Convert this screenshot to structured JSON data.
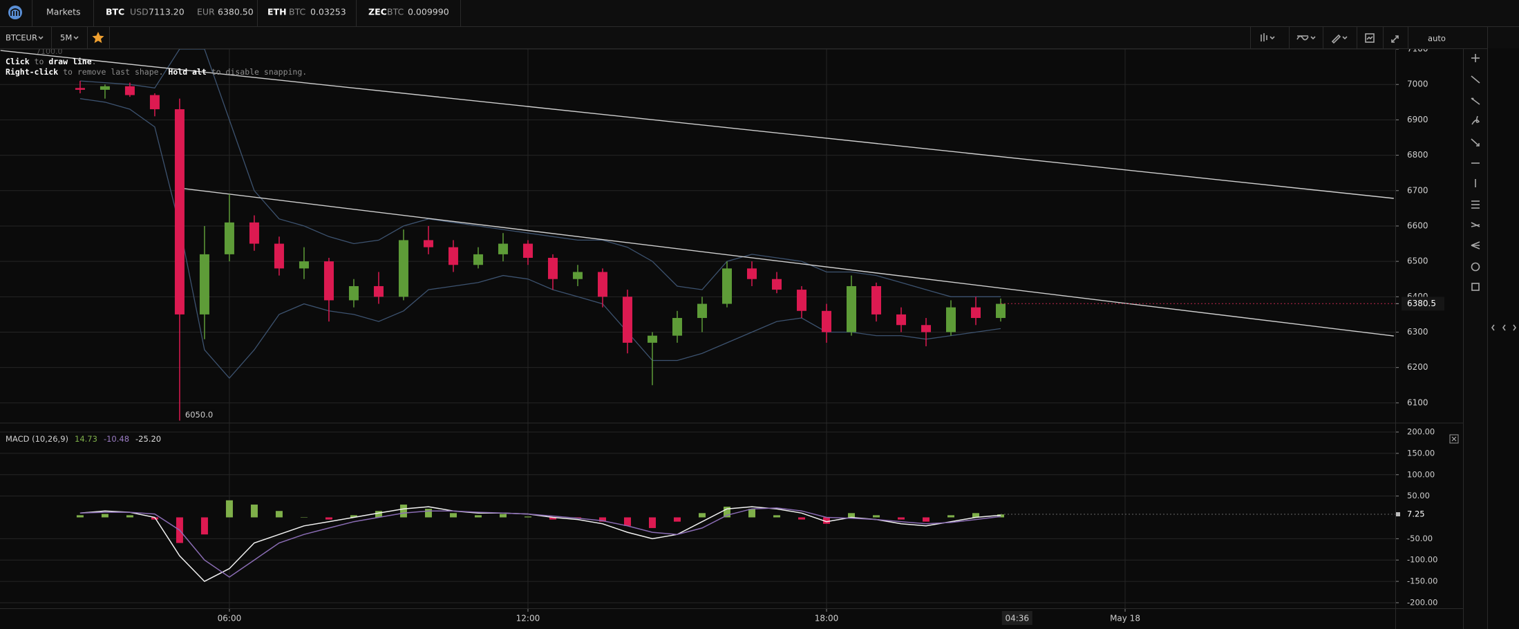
{
  "header": {
    "markets": "Markets",
    "tickers": [
      {
        "symbol": "BTC",
        "quotes": [
          {
            "unit": "USD",
            "price": "7113.20"
          },
          {
            "unit": "EUR",
            "price": "6380.50"
          }
        ]
      },
      {
        "symbol": "ETH",
        "quotes": [
          {
            "unit": "BTC",
            "price": "0.03253"
          }
        ]
      },
      {
        "symbol": "ZEC",
        "quotes": [
          {
            "unit": "BTC",
            "price": "0.009990"
          }
        ]
      }
    ]
  },
  "toolbar": {
    "pair": "BTCEUR",
    "interval": "5M",
    "scale": "auto"
  },
  "hint": {
    "line1": [
      "Click",
      " to ",
      "draw line",
      "."
    ],
    "line2": [
      "Right-click",
      " to remove last shape. ",
      "Hold alt",
      " to disable snapping."
    ]
  },
  "chart_data": [
    {
      "type": "candlestick",
      "x": [
        3,
        3.5,
        4,
        4.5,
        5,
        5.5,
        6,
        6.5,
        7,
        7.5,
        8,
        8.5,
        9,
        9.5,
        10,
        10.5,
        11,
        11.5,
        12,
        12.5,
        13,
        13.5,
        14,
        14.5,
        15,
        15.5,
        16,
        16.5,
        17,
        17.5,
        18,
        18.5,
        19,
        19.5,
        20,
        20.5,
        21,
        21.5
      ],
      "open": [
        6990,
        6985,
        6995,
        6970,
        6930,
        6350,
        6520,
        6610,
        6550,
        6480,
        6500,
        6390,
        6430,
        6400,
        6560,
        6540,
        6490,
        6520,
        6550,
        6510,
        6450,
        6470,
        6400,
        6270,
        6290,
        6340,
        6380,
        6480,
        6450,
        6420,
        6360,
        6300,
        6430,
        6350,
        6320,
        6300,
        6370,
        6340
      ],
      "high": [
        7010,
        7000,
        7005,
        6975,
        6960,
        6600,
        6690,
        6630,
        6570,
        6540,
        6510,
        6450,
        6470,
        6590,
        6600,
        6560,
        6540,
        6580,
        6560,
        6520,
        6490,
        6480,
        6420,
        6300,
        6360,
        6400,
        6500,
        6500,
        6470,
        6430,
        6380,
        6460,
        6440,
        6370,
        6340,
        6390,
        6400,
        6395
      ],
      "low": [
        6975,
        6960,
        6965,
        6910,
        6050,
        6280,
        6500,
        6530,
        6460,
        6450,
        6330,
        6370,
        6380,
        6390,
        6520,
        6470,
        6480,
        6500,
        6490,
        6420,
        6430,
        6370,
        6240,
        6150,
        6270,
        6300,
        6370,
        6430,
        6410,
        6340,
        6270,
        6290,
        6330,
        6300,
        6260,
        6290,
        6320,
        6330
      ],
      "close": [
        6985,
        6995,
        6970,
        6930,
        6350,
        6520,
        6610,
        6550,
        6480,
        6500,
        6390,
        6430,
        6400,
        6560,
        6540,
        6490,
        6520,
        6550,
        6510,
        6450,
        6470,
        6400,
        6270,
        6290,
        6340,
        6380,
        6480,
        6450,
        6420,
        6360,
        6300,
        6430,
        6350,
        6320,
        6300,
        6370,
        6340,
        6380
      ],
      "up_color": "#5e9c38",
      "down_color": "#dc1a51",
      "bands": [
        {
          "color": "#3d5370",
          "values": [
            7010,
            7005,
            7000,
            6990,
            7100,
            7100,
            6900,
            6700,
            6620,
            6600,
            6570,
            6550,
            6560,
            6600,
            6620,
            6610,
            6600,
            6590,
            6580,
            6570,
            6560,
            6560,
            6540,
            6500,
            6430,
            6420,
            6500,
            6520,
            6510,
            6500,
            6470,
            6470,
            6460,
            6440,
            6420,
            6400,
            6400,
            6400
          ]
        },
        {
          "color": "#3d5370",
          "values": [
            6960,
            6950,
            6930,
            6880,
            6600,
            6250,
            6170,
            6250,
            6350,
            6380,
            6360,
            6350,
            6330,
            6360,
            6420,
            6430,
            6440,
            6460,
            6450,
            6420,
            6400,
            6380,
            6300,
            6220,
            6220,
            6240,
            6270,
            6300,
            6330,
            6340,
            6300,
            6300,
            6290,
            6290,
            6280,
            6290,
            6300,
            6310
          ]
        }
      ],
      "trendlines": [
        {
          "color": "#d0d0d0",
          "x": [
            1.4,
            29.4
          ],
          "values": [
            7096,
            6678
          ]
        },
        {
          "color": "#d0d0d0",
          "x": [
            5.01,
            29.4
          ],
          "values": [
            6707,
            6289
          ]
        }
      ],
      "last_price": 6380.5,
      "low_label": {
        "value": 6050,
        "label": "6050.0"
      },
      "crosshair_label": {
        "value": 7100,
        "label": "7100.0"
      },
      "ylim": [
        6047,
        7102
      ],
      "yticks": [
        6100,
        6200,
        6300,
        6400,
        6500,
        6600,
        6700,
        6800,
        6900,
        7000,
        7100
      ],
      "xlim": [
        1.39,
        29.43
      ],
      "xticks": [
        {
          "value": 6,
          "label": "06:00"
        },
        {
          "value": 12,
          "label": "12:00"
        },
        {
          "value": 18,
          "label": "18:00"
        },
        {
          "value": 24,
          "label": "May 18"
        }
      ],
      "cursor_time": {
        "value": 21.83,
        "label": "04:36"
      },
      "grid": true
    },
    {
      "type": "macd",
      "title": "MACD (10,26,9)",
      "readouts": [
        {
          "value": 14.73,
          "color": "#7fb04a"
        },
        {
          "value": -10.48,
          "color": "#9b7cc4"
        },
        {
          "value": -25.2,
          "label": "-25.20",
          "color": "#dddddd"
        }
      ],
      "x": [
        3,
        3.5,
        4,
        4.5,
        5,
        5.5,
        6,
        6.5,
        7,
        7.5,
        8,
        8.5,
        9,
        9.5,
        10,
        10.5,
        11,
        11.5,
        12,
        12.5,
        13,
        13.5,
        14,
        14.5,
        15,
        15.5,
        16,
        16.5,
        17,
        17.5,
        18,
        18.5,
        19,
        19.5,
        20,
        20.5,
        21,
        21.5
      ],
      "histogram": [
        5,
        8,
        5,
        -5,
        -60,
        -40,
        40,
        30,
        15,
        0,
        -5,
        5,
        15,
        30,
        20,
        10,
        5,
        8,
        2,
        -5,
        -2,
        -10,
        -20,
        -25,
        -10,
        10,
        25,
        20,
        5,
        -5,
        -15,
        10,
        5,
        -5,
        -10,
        5,
        10,
        7
      ],
      "up_color": "#7fb04a",
      "down_color": "#dc1a51",
      "series": [
        {
          "color": "#f2f2f2",
          "values": [
            10,
            15,
            12,
            0,
            -90,
            -150,
            -120,
            -60,
            -40,
            -20,
            -10,
            0,
            10,
            20,
            25,
            15,
            10,
            10,
            8,
            0,
            -5,
            -15,
            -35,
            -50,
            -40,
            -10,
            20,
            25,
            20,
            10,
            -10,
            0,
            -5,
            -15,
            -20,
            -10,
            0,
            5
          ]
        },
        {
          "color": "#8a6cb4",
          "values": [
            10,
            12,
            12,
            8,
            -30,
            -100,
            -140,
            -100,
            -60,
            -40,
            -25,
            -10,
            0,
            10,
            15,
            15,
            12,
            10,
            8,
            3,
            -2,
            -8,
            -20,
            -35,
            -40,
            -25,
            5,
            20,
            22,
            15,
            0,
            -2,
            -5,
            -10,
            -15,
            -12,
            -5,
            2
          ]
        }
      ],
      "last": 7.25,
      "ylim": [
        -213,
        213
      ],
      "yticks": [
        {
          "value": 200,
          "label": "200.00"
        },
        {
          "value": 150,
          "label": "150.00"
        },
        {
          "value": 100,
          "label": "100.00"
        },
        {
          "value": 50,
          "label": "50.00"
        },
        {
          "value": -50,
          "label": "-50.00"
        },
        {
          "value": -100,
          "label": "-100.00"
        },
        {
          "value": -150,
          "label": "-150.00"
        },
        {
          "value": -200,
          "label": "-200.00"
        }
      ],
      "xlim": [
        1.39,
        29.43
      ],
      "grid": true
    }
  ]
}
